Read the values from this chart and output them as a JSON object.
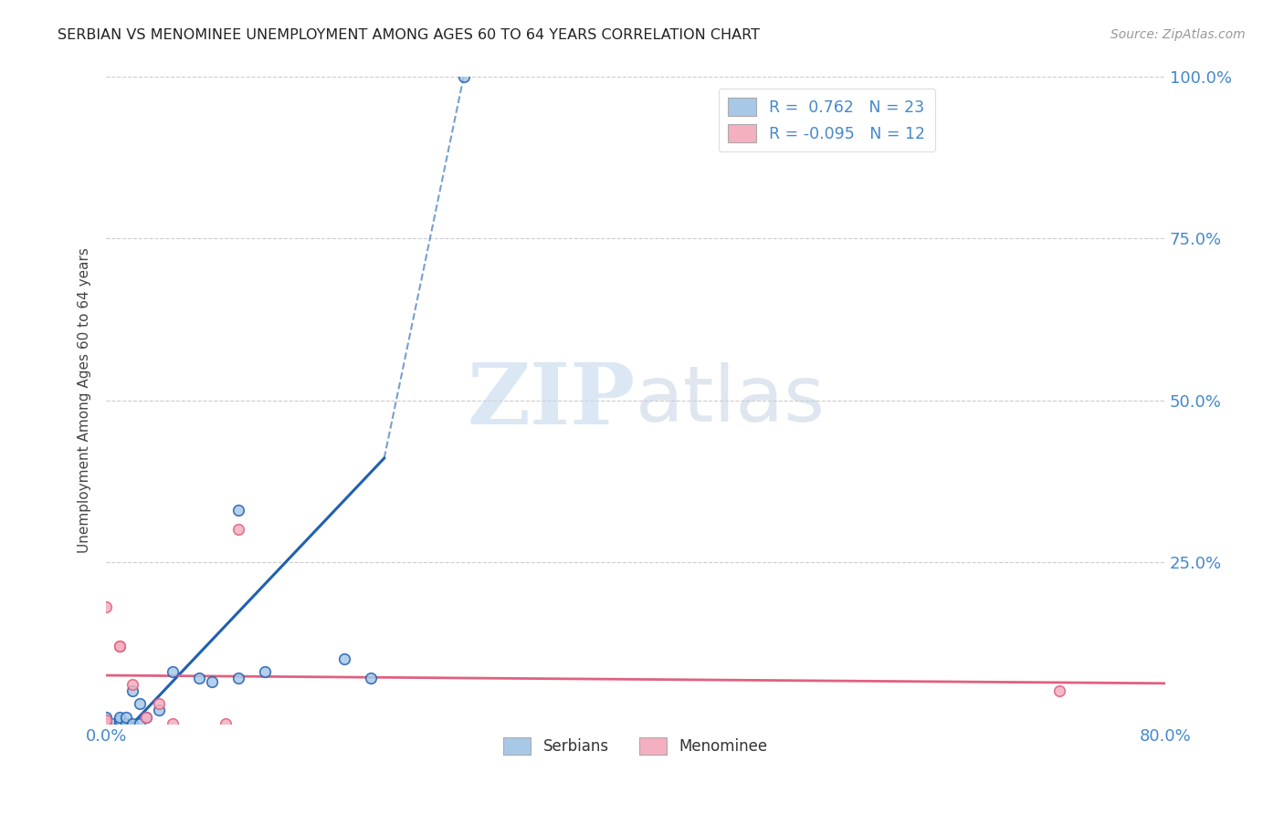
{
  "title": "SERBIAN VS MENOMINEE UNEMPLOYMENT AMONG AGES 60 TO 64 YEARS CORRELATION CHART",
  "source": "Source: ZipAtlas.com",
  "ylabel": "Unemployment Among Ages 60 to 64 years",
  "xlim": [
    0.0,
    0.8
  ],
  "ylim": [
    0.0,
    1.0
  ],
  "serbian_x": [
    0.0,
    0.0,
    0.005,
    0.01,
    0.01,
    0.01,
    0.015,
    0.015,
    0.02,
    0.02,
    0.025,
    0.025,
    0.03,
    0.04,
    0.05,
    0.07,
    0.08,
    0.1,
    0.1,
    0.12,
    0.18,
    0.2,
    0.27
  ],
  "serbian_y": [
    0.0,
    0.01,
    0.0,
    0.0,
    0.005,
    0.01,
    0.0,
    0.01,
    0.0,
    0.05,
    0.0,
    0.03,
    0.01,
    0.02,
    0.08,
    0.07,
    0.065,
    0.07,
    0.33,
    0.08,
    0.1,
    0.07,
    1.0
  ],
  "menominee_x": [
    0.0,
    0.0,
    0.0,
    0.01,
    0.01,
    0.02,
    0.03,
    0.04,
    0.05,
    0.09,
    0.1,
    0.72
  ],
  "menominee_y": [
    0.0,
    0.005,
    0.18,
    0.12,
    0.12,
    0.06,
    0.01,
    0.03,
    0.0,
    0.0,
    0.3,
    0.05
  ],
  "serbian_color": "#a8c8e8",
  "menominee_color": "#f4b0c0",
  "serbian_line_color": "#2060b0",
  "menominee_line_color": "#e06080",
  "serbian_R": 0.762,
  "serbian_N": 23,
  "menominee_R": -0.095,
  "menominee_N": 12,
  "legend_serbian_label": "Serbians",
  "legend_menominee_label": "Menominee",
  "watermark_zip": "ZIP",
  "watermark_atlas": "atlas",
  "background_color": "#ffffff",
  "grid_color": "#cccccc",
  "title_color": "#222222",
  "axis_color": "#4488cc",
  "marker_size": 70,
  "marker_linewidth": 1.2
}
